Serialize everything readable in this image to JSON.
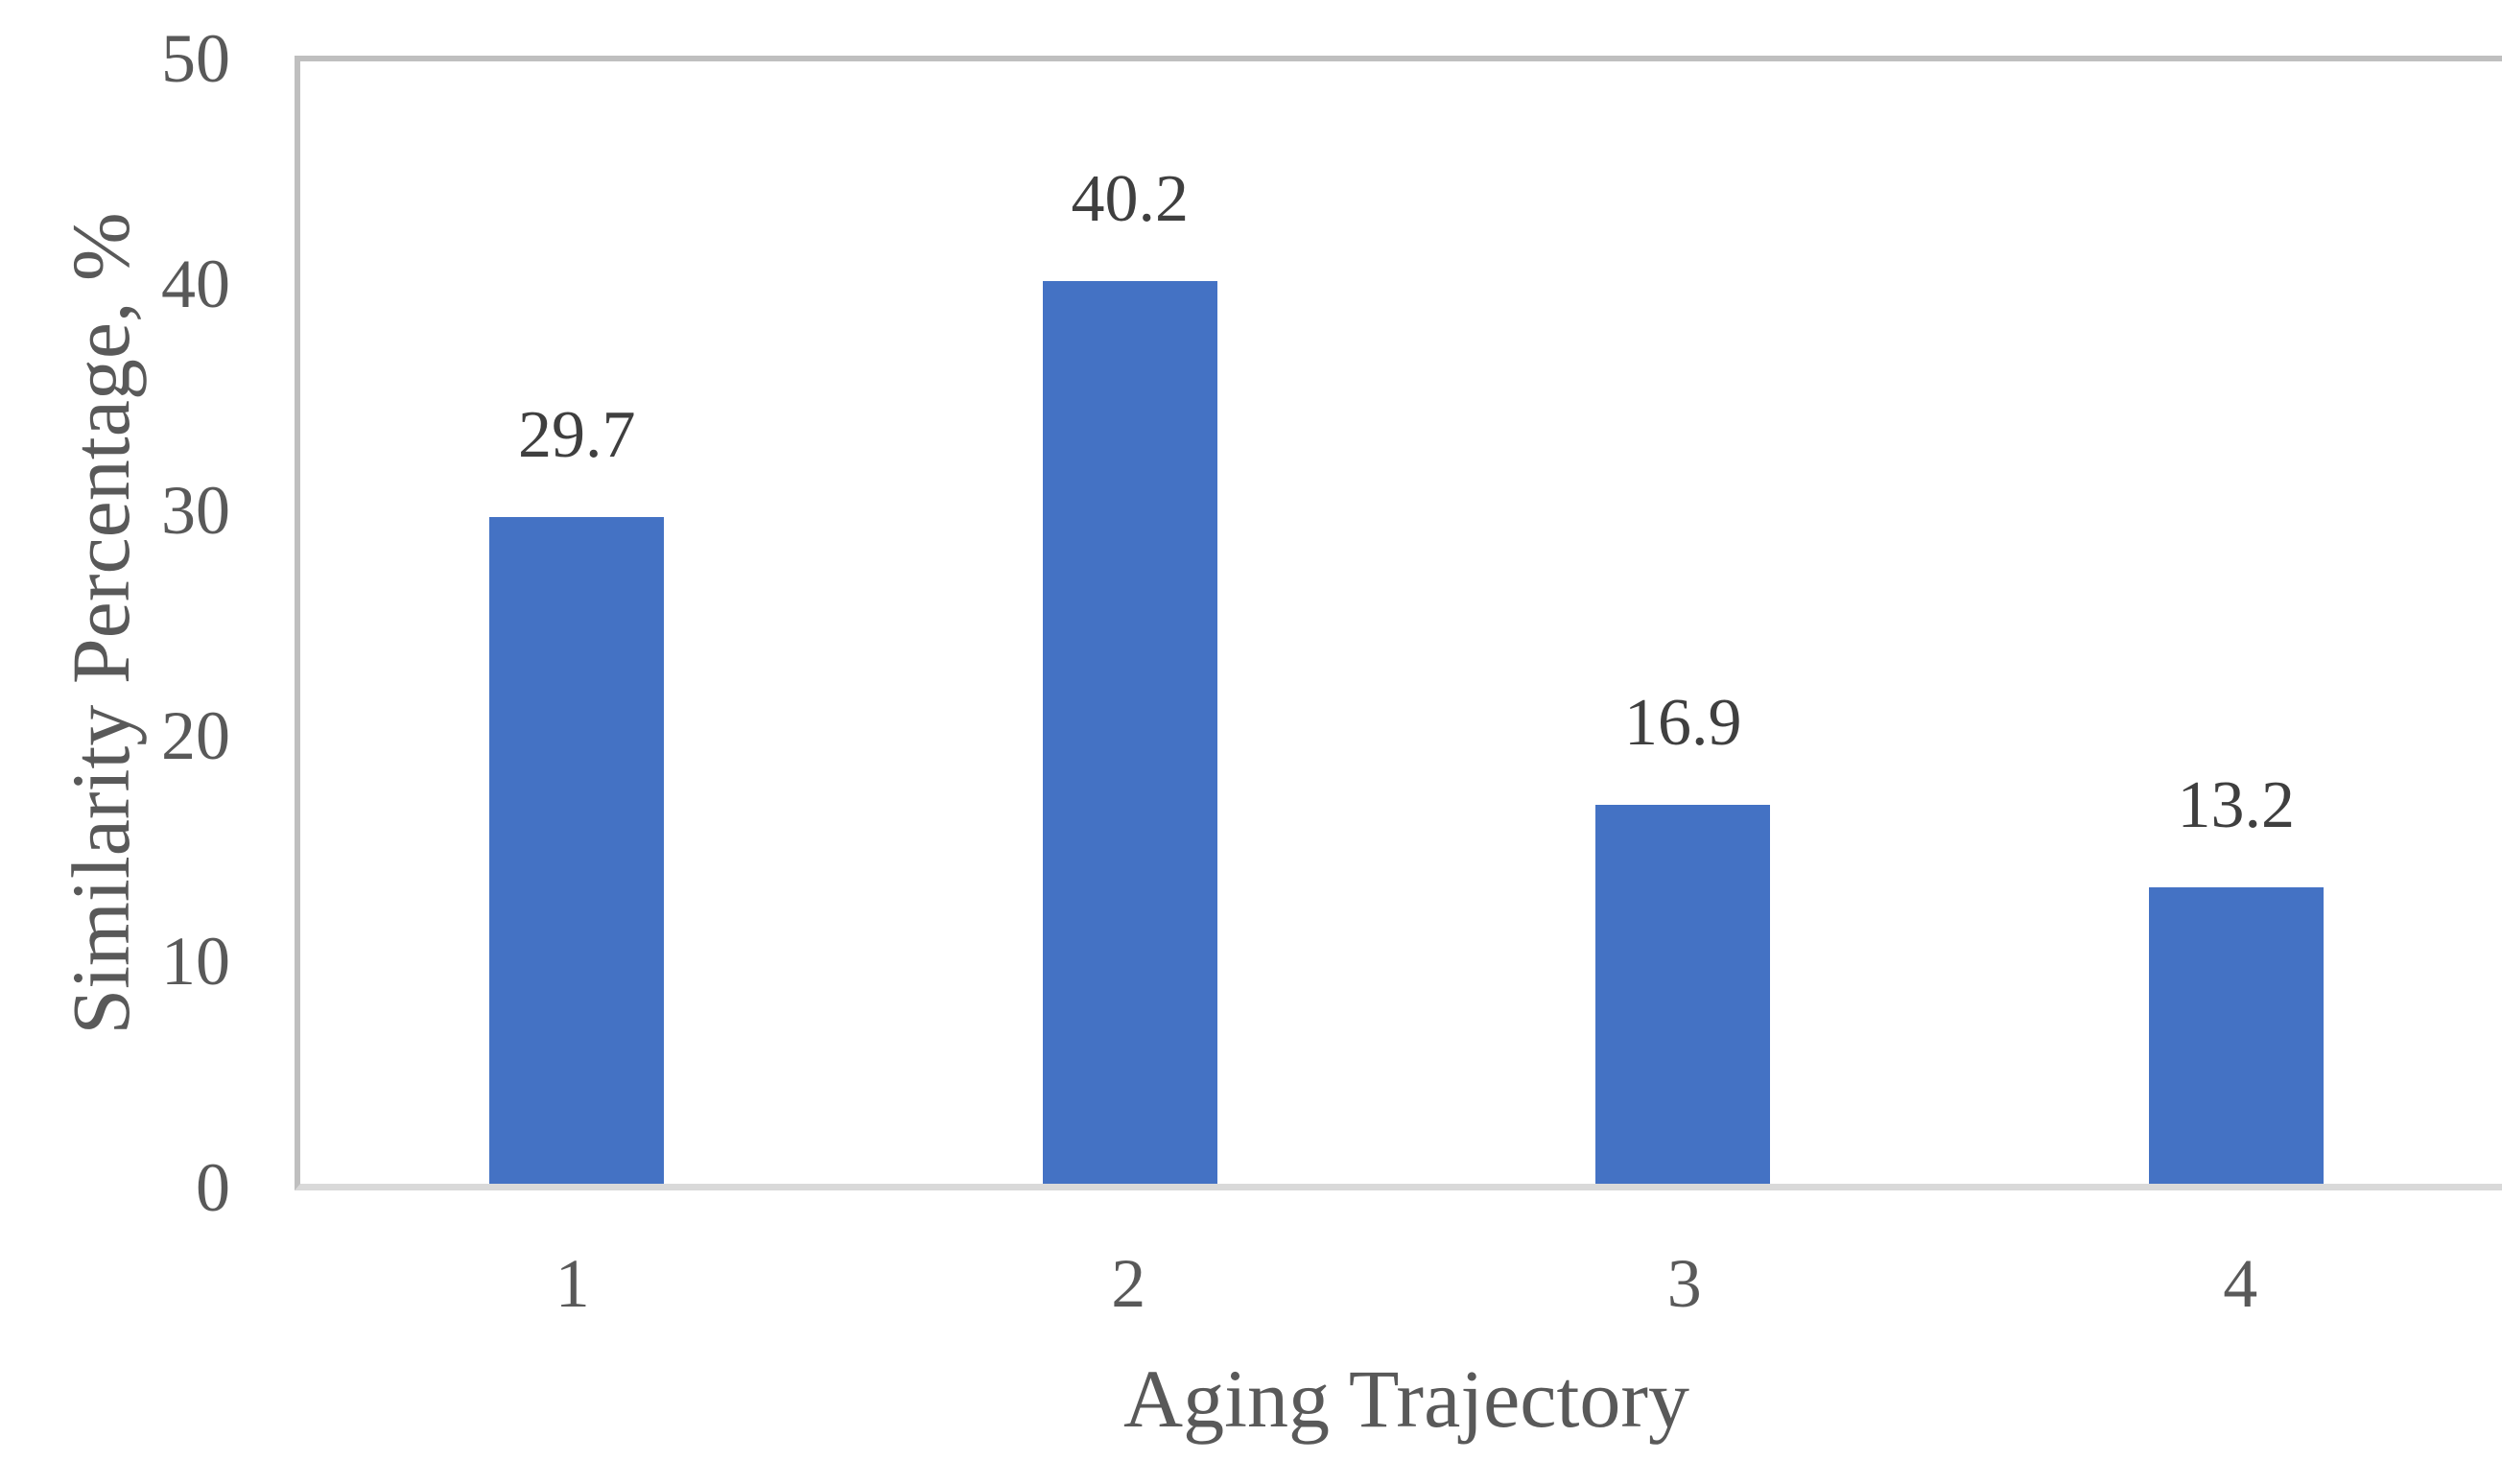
{
  "chart_data": {
    "type": "bar",
    "title": "",
    "categories": [
      "1",
      "2",
      "3",
      "4"
    ],
    "values": [
      29.7,
      40.2,
      16.9,
      13.2
    ],
    "data_labels": [
      "29.7",
      "40.2",
      "16.9",
      "13.2"
    ],
    "xlabel": "Aging Trajectory",
    "ylabel": "Similarity Percentage, %",
    "ylim": [
      0,
      50
    ],
    "yticks": [
      0,
      10,
      20,
      30,
      40,
      50
    ],
    "grid": false,
    "legend": "none",
    "colors": {
      "bar": "#4472C4",
      "axis_line": "#D9D9D9",
      "plot_border": "#BFBFBF",
      "axis_text": "#595959",
      "data_label_text": "#3F3F3F",
      "background": "#FFFFFF"
    }
  }
}
